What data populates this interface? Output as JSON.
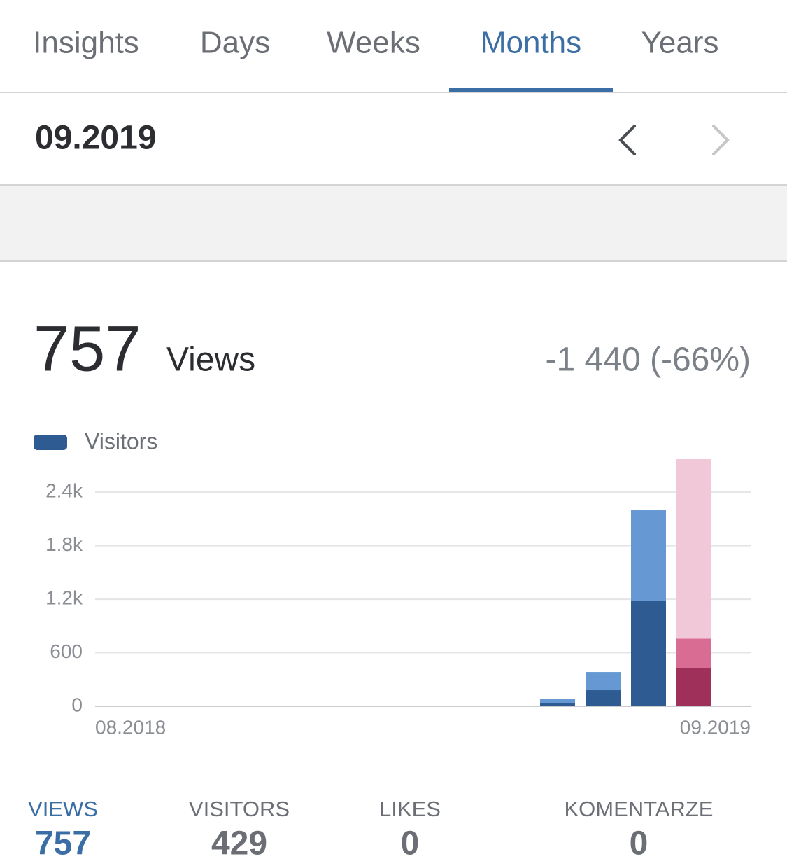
{
  "tabs": {
    "items": [
      "Insights",
      "Days",
      "Weeks",
      "Months",
      "Years"
    ],
    "active": 3
  },
  "period": {
    "label": "09.2019"
  },
  "summary": {
    "value": 757,
    "label": "Views",
    "change": "-1 440 (-66%)"
  },
  "chart_data": {
    "type": "bar",
    "categories": [
      "08.2018",
      null,
      null,
      null,
      null,
      null,
      null,
      null,
      null,
      null,
      null,
      null,
      null,
      "09.2019"
    ],
    "series": [
      {
        "color": "#6699d4",
        "selected_color": "#d96c93",
        "values": [
          0,
          0,
          0,
          0,
          0,
          0,
          0,
          0,
          0,
          0,
          86,
          384,
          2197,
          757
        ]
      },
      {
        "name": "Visitors",
        "color": "#2d5b92",
        "selected_color": "#9e3059",
        "values": [
          0,
          0,
          0,
          0,
          0,
          0,
          0,
          0,
          0,
          0,
          39,
          180,
          1184,
          429
        ]
      }
    ],
    "selected": 13,
    "selected_background": "#f0c8d7",
    "ylim": [
      0,
      2770
    ],
    "yticks": [
      0,
      600,
      {
        "value": 1200,
        "label": "1.2k"
      },
      {
        "value": 1800,
        "label": "1.8k"
      },
      {
        "value": 2400,
        "label": "2.4k"
      }
    ],
    "grid": true
  },
  "stats": [
    {
      "label": "VIEWS",
      "value": 757
    },
    {
      "label": "VISITORS",
      "value": 429
    },
    {
      "label": "LIKES",
      "value": 0
    },
    {
      "label": "KOMENTARZE",
      "value": 0
    }
  ],
  "stats_active": 0
}
